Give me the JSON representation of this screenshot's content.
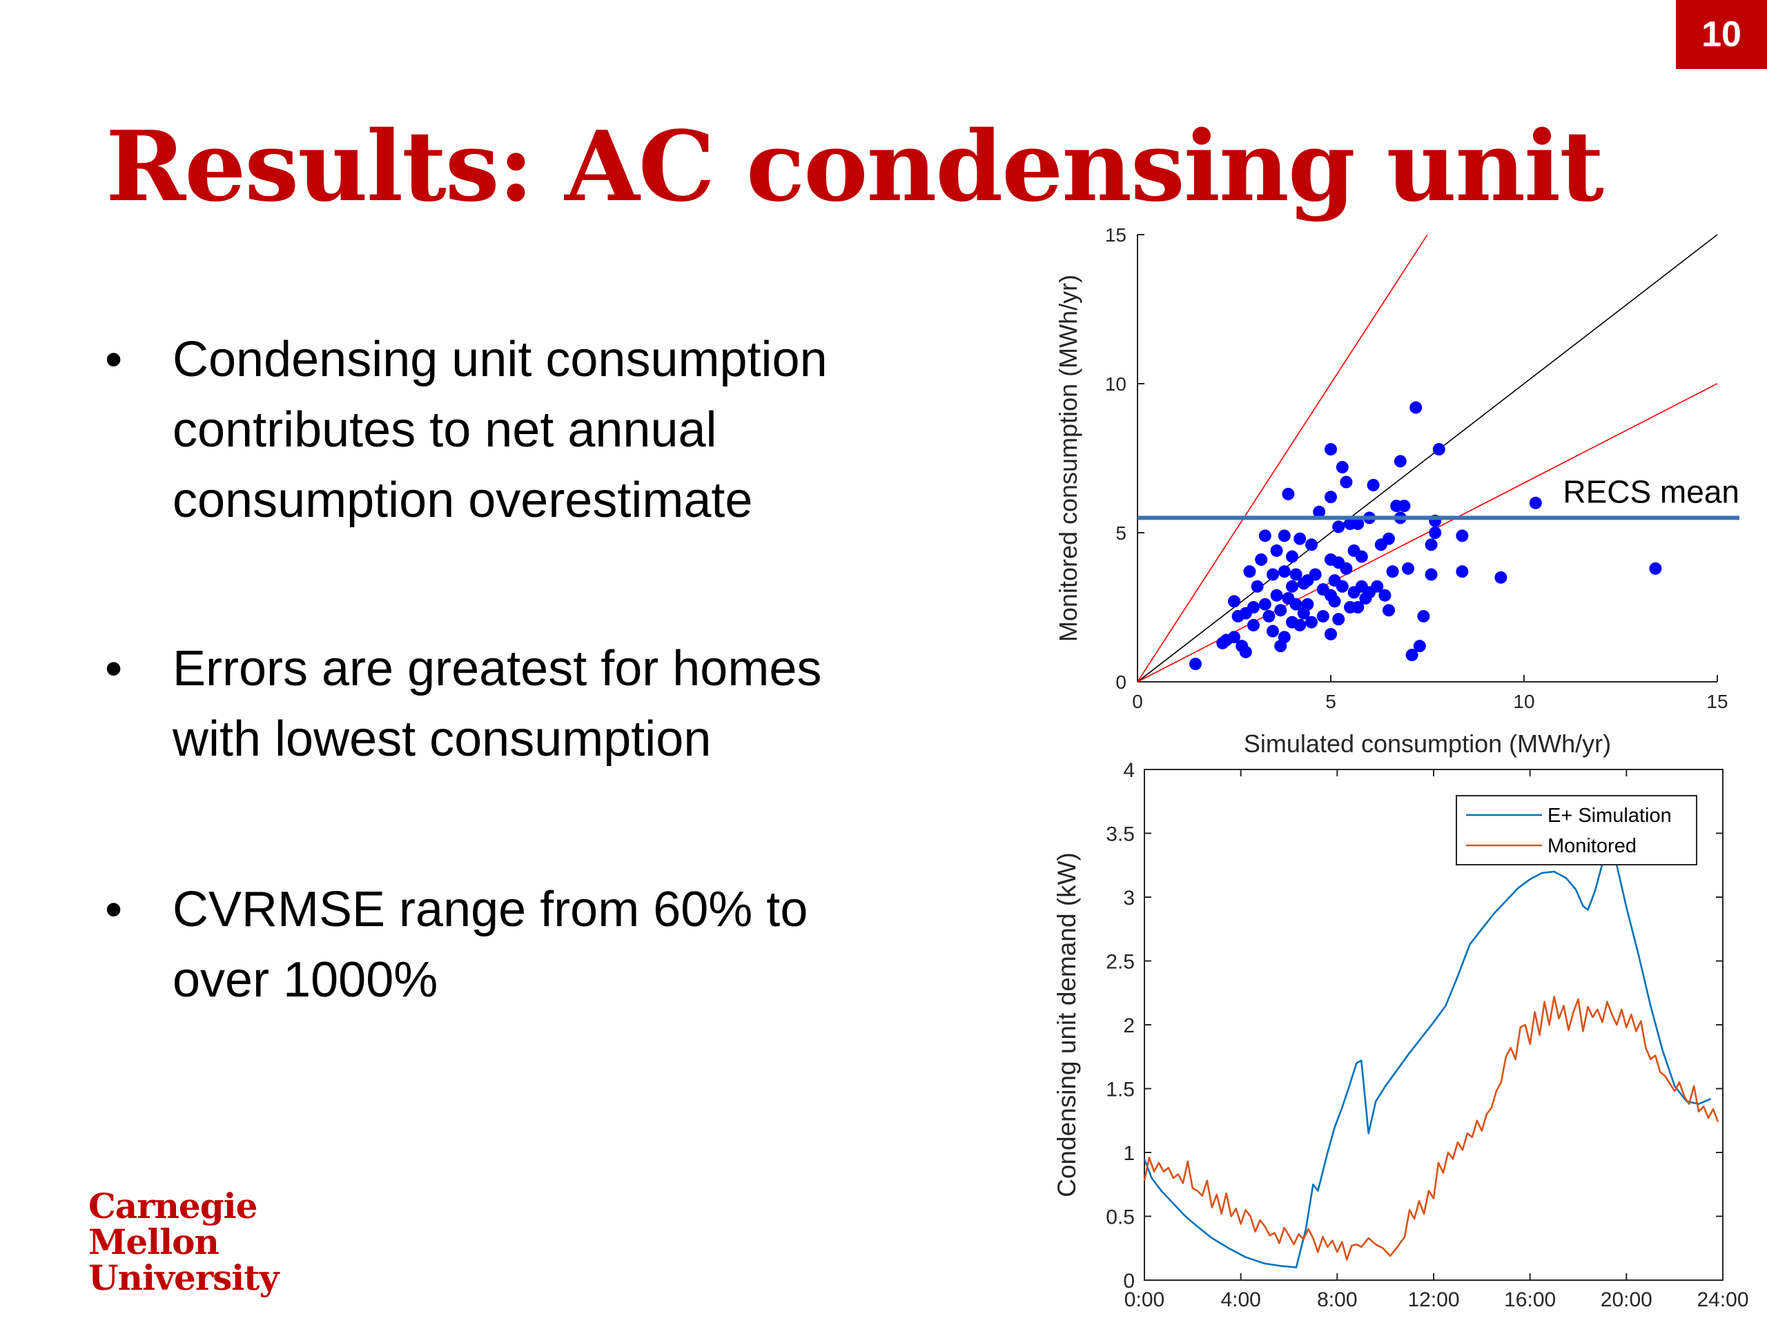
{
  "slide_number": "10",
  "title": "Results: AC condensing unit",
  "bullets": [
    {
      "lines": [
        "Condensing unit consumption",
        "contributes to net annual",
        "consumption overestimate"
      ]
    },
    {
      "lines": [
        "Errors are greatest for homes",
        "with lowest consumption"
      ]
    },
    {
      "lines": [
        "CVRMSE range from 60% to",
        "over 1000%"
      ]
    }
  ],
  "logo": {
    "lines": [
      "Carnegie",
      "Mellon",
      "University"
    ]
  },
  "colors": {
    "accent": "#c00000",
    "scatter_points": "#0000ff",
    "recs_line": "#3a72b0",
    "ref_red": "#ff0000",
    "simulation": "#0072bd",
    "monitored": "#d95319"
  },
  "chart_data": [
    {
      "type": "scatter",
      "xlabel": "Simulated consumption (MWh/yr)",
      "ylabel": "Monitored consumption (MWh/yr)",
      "xlim": [
        0,
        15
      ],
      "ylim": [
        0,
        15
      ],
      "xticks": [
        "0",
        "5",
        "10",
        "15"
      ],
      "yticks": [
        "0",
        "5",
        "10",
        "15"
      ],
      "reference_lines": [
        {
          "kind": "y=x",
          "slope": 1
        },
        {
          "kind": "upper",
          "slope": 2
        },
        {
          "kind": "lower",
          "slope": 0.667
        }
      ],
      "hline": {
        "y": 5.5,
        "label": "RECS mean"
      },
      "points": [
        [
          1.5,
          0.6
        ],
        [
          2.2,
          1.3
        ],
        [
          2.3,
          1.4
        ],
        [
          2.5,
          1.5
        ],
        [
          2.5,
          2.7
        ],
        [
          2.6,
          2.2
        ],
        [
          2.7,
          1.2
        ],
        [
          2.8,
          2.3
        ],
        [
          2.8,
          1.0
        ],
        [
          2.9,
          3.7
        ],
        [
          3.0,
          2.5
        ],
        [
          3.0,
          1.9
        ],
        [
          3.1,
          3.2
        ],
        [
          3.2,
          4.1
        ],
        [
          3.3,
          2.6
        ],
        [
          3.3,
          4.9
        ],
        [
          3.4,
          2.2
        ],
        [
          3.5,
          3.6
        ],
        [
          3.5,
          1.7
        ],
        [
          3.6,
          2.9
        ],
        [
          3.6,
          4.4
        ],
        [
          3.7,
          1.2
        ],
        [
          3.7,
          2.4
        ],
        [
          3.8,
          3.7
        ],
        [
          3.8,
          4.9
        ],
        [
          3.8,
          1.5
        ],
        [
          3.9,
          2.8
        ],
        [
          3.9,
          6.3
        ],
        [
          4.0,
          3.2
        ],
        [
          4.0,
          4.2
        ],
        [
          4.0,
          2.0
        ],
        [
          4.1,
          2.6
        ],
        [
          4.1,
          3.6
        ],
        [
          4.2,
          1.9
        ],
        [
          4.2,
          4.8
        ],
        [
          4.3,
          2.3
        ],
        [
          4.3,
          3.3
        ],
        [
          4.4,
          2.6
        ],
        [
          4.4,
          3.4
        ],
        [
          4.5,
          4.6
        ],
        [
          4.5,
          2.0
        ],
        [
          4.6,
          3.6
        ],
        [
          4.7,
          5.7
        ],
        [
          4.8,
          2.2
        ],
        [
          4.8,
          3.1
        ],
        [
          5.0,
          1.6
        ],
        [
          5.0,
          2.9
        ],
        [
          5.0,
          4.1
        ],
        [
          5.0,
          6.2
        ],
        [
          5.0,
          7.8
        ],
        [
          5.1,
          3.4
        ],
        [
          5.1,
          2.7
        ],
        [
          5.2,
          2.1
        ],
        [
          5.2,
          4.0
        ],
        [
          5.2,
          5.2
        ],
        [
          5.3,
          3.2
        ],
        [
          5.3,
          7.2
        ],
        [
          5.4,
          3.8
        ],
        [
          5.4,
          6.7
        ],
        [
          5.5,
          2.5
        ],
        [
          5.5,
          5.3
        ],
        [
          5.6,
          4.4
        ],
        [
          5.6,
          3.0
        ],
        [
          5.7,
          2.5
        ],
        [
          5.7,
          5.3
        ],
        [
          5.8,
          3.2
        ],
        [
          5.8,
          4.2
        ],
        [
          5.9,
          2.8
        ],
        [
          6.0,
          3.0
        ],
        [
          6.0,
          5.5
        ],
        [
          6.1,
          6.6
        ],
        [
          6.2,
          3.2
        ],
        [
          6.3,
          4.6
        ],
        [
          6.4,
          2.9
        ],
        [
          6.5,
          4.8
        ],
        [
          6.5,
          2.4
        ],
        [
          6.6,
          3.7
        ],
        [
          6.7,
          5.9
        ],
        [
          6.8,
          7.4
        ],
        [
          6.8,
          5.5
        ],
        [
          6.9,
          5.9
        ],
        [
          7.0,
          3.8
        ],
        [
          7.1,
          0.9
        ],
        [
          7.2,
          9.2
        ],
        [
          7.3,
          1.2
        ],
        [
          7.4,
          2.2
        ],
        [
          7.6,
          3.6
        ],
        [
          7.6,
          4.6
        ],
        [
          7.7,
          5.0
        ],
        [
          7.7,
          5.4
        ],
        [
          7.8,
          7.8
        ],
        [
          8.4,
          3.7
        ],
        [
          8.4,
          4.9
        ],
        [
          9.4,
          3.5
        ],
        [
          10.3,
          6.0
        ],
        [
          13.4,
          3.8
        ]
      ]
    },
    {
      "type": "line",
      "xlabel": "",
      "ylabel": "Condensing unit demand (kW)",
      "xlim": [
        0,
        24
      ],
      "ylim": [
        0,
        4
      ],
      "xticks": [
        "0:00",
        "4:00",
        "8:00",
        "12:00",
        "16:00",
        "20:00",
        "24:00"
      ],
      "yticks": [
        "0",
        "0.5",
        "1",
        "1.5",
        "2",
        "2.5",
        "3",
        "3.5",
        "4"
      ],
      "legend": {
        "position": "top-right"
      },
      "series": [
        {
          "name": "E+ Simulation",
          "points": [
            [
              0.0,
              0.95
            ],
            [
              0.3,
              0.8
            ],
            [
              0.7,
              0.7
            ],
            [
              1.2,
              0.6
            ],
            [
              1.7,
              0.5
            ],
            [
              2.2,
              0.42
            ],
            [
              2.8,
              0.33
            ],
            [
              3.5,
              0.25
            ],
            [
              4.2,
              0.18
            ],
            [
              5.0,
              0.13
            ],
            [
              5.7,
              0.11
            ],
            [
              6.3,
              0.1
            ],
            [
              6.7,
              0.4
            ],
            [
              7.0,
              0.75
            ],
            [
              7.2,
              0.7
            ],
            [
              7.4,
              0.85
            ],
            [
              7.6,
              1.0
            ],
            [
              7.9,
              1.2
            ],
            [
              8.2,
              1.35
            ],
            [
              8.5,
              1.52
            ],
            [
              8.8,
              1.7
            ],
            [
              9.0,
              1.72
            ],
            [
              9.3,
              1.15
            ],
            [
              9.6,
              1.4
            ],
            [
              10.0,
              1.52
            ],
            [
              10.5,
              1.65
            ],
            [
              11.0,
              1.78
            ],
            [
              11.5,
              1.9
            ],
            [
              12.0,
              2.02
            ],
            [
              12.5,
              2.15
            ],
            [
              13.0,
              2.38
            ],
            [
              13.5,
              2.63
            ],
            [
              14.0,
              2.75
            ],
            [
              14.5,
              2.87
            ],
            [
              15.0,
              2.97
            ],
            [
              15.5,
              3.07
            ],
            [
              16.0,
              3.14
            ],
            [
              16.5,
              3.19
            ],
            [
              17.0,
              3.2
            ],
            [
              17.5,
              3.15
            ],
            [
              17.9,
              3.06
            ],
            [
              18.2,
              2.93
            ],
            [
              18.4,
              2.9
            ],
            [
              18.7,
              3.05
            ],
            [
              19.0,
              3.26
            ],
            [
              19.3,
              3.4
            ],
            [
              19.6,
              3.25
            ],
            [
              20.0,
              2.92
            ],
            [
              20.5,
              2.55
            ],
            [
              21.0,
              2.15
            ],
            [
              21.5,
              1.8
            ],
            [
              22.0,
              1.52
            ],
            [
              22.5,
              1.4
            ],
            [
              23.0,
              1.38
            ],
            [
              23.5,
              1.42
            ]
          ]
        },
        {
          "name": "Monitored",
          "points": [
            [
              0.0,
              0.78
            ],
            [
              0.2,
              0.96
            ],
            [
              0.4,
              0.85
            ],
            [
              0.6,
              0.92
            ],
            [
              0.8,
              0.85
            ],
            [
              1.0,
              0.88
            ],
            [
              1.2,
              0.8
            ],
            [
              1.4,
              0.83
            ],
            [
              1.6,
              0.76
            ],
            [
              1.8,
              0.93
            ],
            [
              2.0,
              0.72
            ],
            [
              2.2,
              0.7
            ],
            [
              2.4,
              0.66
            ],
            [
              2.6,
              0.78
            ],
            [
              2.8,
              0.57
            ],
            [
              3.0,
              0.67
            ],
            [
              3.2,
              0.52
            ],
            [
              3.4,
              0.68
            ],
            [
              3.6,
              0.5
            ],
            [
              3.8,
              0.56
            ],
            [
              4.0,
              0.44
            ],
            [
              4.2,
              0.55
            ],
            [
              4.4,
              0.5
            ],
            [
              4.6,
              0.38
            ],
            [
              4.8,
              0.47
            ],
            [
              5.0,
              0.42
            ],
            [
              5.2,
              0.35
            ],
            [
              5.4,
              0.37
            ],
            [
              5.6,
              0.29
            ],
            [
              5.8,
              0.41
            ],
            [
              6.0,
              0.35
            ],
            [
              6.2,
              0.28
            ],
            [
              6.4,
              0.36
            ],
            [
              6.6,
              0.32
            ],
            [
              6.8,
              0.4
            ],
            [
              7.0,
              0.33
            ],
            [
              7.2,
              0.22
            ],
            [
              7.4,
              0.34
            ],
            [
              7.6,
              0.26
            ],
            [
              7.8,
              0.31
            ],
            [
              8.0,
              0.22
            ],
            [
              8.2,
              0.3
            ],
            [
              8.4,
              0.16
            ],
            [
              8.6,
              0.27
            ],
            [
              8.8,
              0.28
            ],
            [
              9.0,
              0.26
            ],
            [
              9.3,
              0.33
            ],
            [
              9.6,
              0.28
            ],
            [
              9.9,
              0.25
            ],
            [
              10.2,
              0.19
            ],
            [
              10.5,
              0.26
            ],
            [
              10.8,
              0.34
            ],
            [
              11.0,
              0.55
            ],
            [
              11.2,
              0.48
            ],
            [
              11.4,
              0.62
            ],
            [
              11.6,
              0.52
            ],
            [
              11.8,
              0.7
            ],
            [
              12.0,
              0.64
            ],
            [
              12.2,
              0.92
            ],
            [
              12.4,
              0.84
            ],
            [
              12.6,
              1.0
            ],
            [
              12.8,
              0.95
            ],
            [
              13.0,
              1.08
            ],
            [
              13.2,
              1.02
            ],
            [
              13.4,
              1.15
            ],
            [
              13.6,
              1.12
            ],
            [
              13.8,
              1.25
            ],
            [
              14.0,
              1.17
            ],
            [
              14.2,
              1.3
            ],
            [
              14.4,
              1.35
            ],
            [
              14.6,
              1.48
            ],
            [
              14.8,
              1.55
            ],
            [
              15.0,
              1.75
            ],
            [
              15.2,
              1.82
            ],
            [
              15.4,
              1.73
            ],
            [
              15.6,
              1.98
            ],
            [
              15.8,
              2.0
            ],
            [
              16.0,
              1.85
            ],
            [
              16.2,
              2.1
            ],
            [
              16.4,
              1.92
            ],
            [
              16.6,
              2.18
            ],
            [
              16.8,
              2.0
            ],
            [
              17.0,
              2.22
            ],
            [
              17.2,
              2.05
            ],
            [
              17.4,
              2.15
            ],
            [
              17.6,
              1.96
            ],
            [
              17.8,
              2.1
            ],
            [
              18.0,
              2.2
            ],
            [
              18.2,
              1.95
            ],
            [
              18.4,
              2.14
            ],
            [
              18.6,
              2.06
            ],
            [
              18.8,
              2.12
            ],
            [
              19.0,
              2.02
            ],
            [
              19.2,
              2.18
            ],
            [
              19.4,
              2.08
            ],
            [
              19.6,
              2.0
            ],
            [
              19.8,
              2.12
            ],
            [
              20.0,
              1.98
            ],
            [
              20.2,
              2.08
            ],
            [
              20.4,
              1.95
            ],
            [
              20.6,
              2.03
            ],
            [
              20.8,
              1.82
            ],
            [
              21.0,
              1.73
            ],
            [
              21.2,
              1.76
            ],
            [
              21.4,
              1.63
            ],
            [
              21.6,
              1.6
            ],
            [
              21.8,
              1.54
            ],
            [
              22.0,
              1.48
            ],
            [
              22.2,
              1.55
            ],
            [
              22.4,
              1.44
            ],
            [
              22.6,
              1.38
            ],
            [
              22.8,
              1.52
            ],
            [
              23.0,
              1.32
            ],
            [
              23.2,
              1.36
            ],
            [
              23.4,
              1.27
            ],
            [
              23.6,
              1.34
            ],
            [
              23.8,
              1.24
            ]
          ]
        }
      ]
    }
  ]
}
